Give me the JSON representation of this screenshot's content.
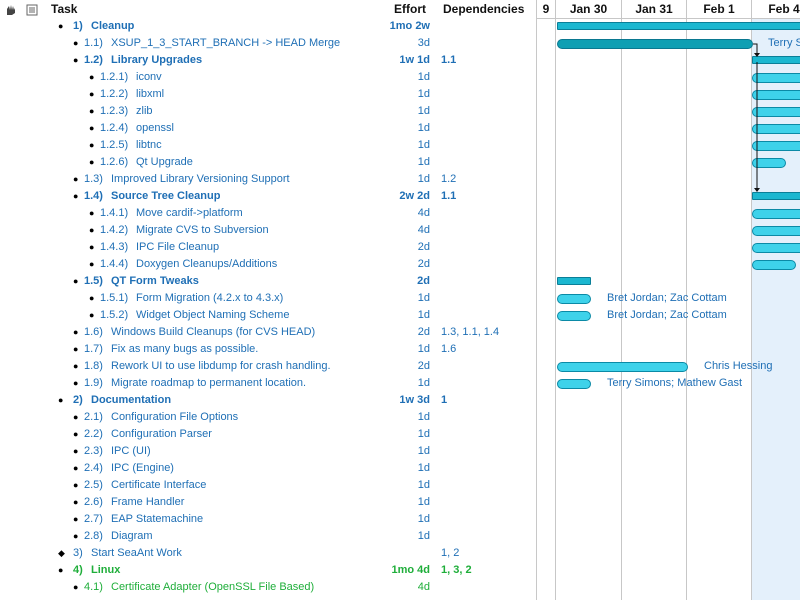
{
  "header": {
    "task": "Task",
    "effort": "Effort",
    "dependencies": "Dependencies"
  },
  "gantt": {
    "dates": [
      "9",
      "Jan 30",
      "Jan 31",
      "Feb 1",
      "Feb 4"
    ],
    "resources": {
      "r1": "Terry S",
      "r15a": "Bret Jordan; Zac Cottam",
      "r15b": "Bret Jordan; Zac Cottam",
      "r18": "Chris Hessing",
      "r19": "Terry Simons; Mathew Gast"
    }
  },
  "rows": [
    {
      "num": "1)",
      "name": "Cleanup",
      "effort": "1mo 2w",
      "deps": "",
      "level": 1,
      "bold": true,
      "color": "blue"
    },
    {
      "num": "1.1)",
      "name": "XSUP_1_3_START_BRANCH -> HEAD Merge",
      "effort": "3d",
      "deps": "",
      "level": 2,
      "bold": false,
      "color": "blue"
    },
    {
      "num": "1.2)",
      "name": "Library Upgrades",
      "effort": "1w 1d",
      "deps": "1.1",
      "level": 2,
      "bold": true,
      "color": "blue"
    },
    {
      "num": "1.2.1)",
      "name": "iconv",
      "effort": "1d",
      "deps": "",
      "level": 3,
      "bold": false,
      "color": "blue"
    },
    {
      "num": "1.2.2)",
      "name": "libxml",
      "effort": "1d",
      "deps": "",
      "level": 3,
      "bold": false,
      "color": "blue"
    },
    {
      "num": "1.2.3)",
      "name": "zlib",
      "effort": "1d",
      "deps": "",
      "level": 3,
      "bold": false,
      "color": "blue"
    },
    {
      "num": "1.2.4)",
      "name": "openssl",
      "effort": "1d",
      "deps": "",
      "level": 3,
      "bold": false,
      "color": "blue"
    },
    {
      "num": "1.2.5)",
      "name": "libtnc",
      "effort": "1d",
      "deps": "",
      "level": 3,
      "bold": false,
      "color": "blue"
    },
    {
      "num": "1.2.6)",
      "name": "Qt Upgrade",
      "effort": "1d",
      "deps": "",
      "level": 3,
      "bold": false,
      "color": "blue"
    },
    {
      "num": "1.3)",
      "name": "Improved Library Versioning Support",
      "effort": "1d",
      "deps": "1.2",
      "level": 2,
      "bold": false,
      "color": "blue"
    },
    {
      "num": "1.4)",
      "name": "Source Tree Cleanup",
      "effort": "2w 2d",
      "deps": "1.1",
      "level": 2,
      "bold": true,
      "color": "blue"
    },
    {
      "num": "1.4.1)",
      "name": "Move cardif->platform",
      "effort": "4d",
      "deps": "",
      "level": 3,
      "bold": false,
      "color": "blue"
    },
    {
      "num": "1.4.2)",
      "name": "Migrate CVS to Subversion",
      "effort": "4d",
      "deps": "",
      "level": 3,
      "bold": false,
      "color": "blue"
    },
    {
      "num": "1.4.3)",
      "name": "IPC File Cleanup",
      "effort": "2d",
      "deps": "",
      "level": 3,
      "bold": false,
      "color": "blue"
    },
    {
      "num": "1.4.4)",
      "name": "Doxygen Cleanups/Additions",
      "effort": "2d",
      "deps": "",
      "level": 3,
      "bold": false,
      "color": "blue"
    },
    {
      "num": "1.5)",
      "name": "QT Form Tweaks",
      "effort": "2d",
      "deps": "",
      "level": 2,
      "bold": true,
      "color": "blue"
    },
    {
      "num": "1.5.1)",
      "name": "Form Migration (4.2.x to 4.3.x)",
      "effort": "1d",
      "deps": "",
      "level": 3,
      "bold": false,
      "color": "blue"
    },
    {
      "num": "1.5.2)",
      "name": "Widget Object Naming Scheme",
      "effort": "1d",
      "deps": "",
      "level": 3,
      "bold": false,
      "color": "blue"
    },
    {
      "num": "1.6)",
      "name": "Windows Build Cleanups (for CVS HEAD)",
      "effort": "2d",
      "deps": "1.3, 1.1, 1.4",
      "level": 2,
      "bold": false,
      "color": "blue"
    },
    {
      "num": "1.7)",
      "name": "Fix as many bugs as possible.",
      "effort": "1d",
      "deps": "1.6",
      "level": 2,
      "bold": false,
      "color": "blue"
    },
    {
      "num": "1.8)",
      "name": "Rework UI to use libdump for crash handling.",
      "effort": "2d",
      "deps": "",
      "level": 2,
      "bold": false,
      "color": "blue"
    },
    {
      "num": "1.9)",
      "name": "Migrate roadmap to permanent location.",
      "effort": "1d",
      "deps": "",
      "level": 2,
      "bold": false,
      "color": "blue"
    },
    {
      "num": "2)",
      "name": "Documentation",
      "effort": "1w 3d",
      "deps": "1",
      "level": 1,
      "bold": true,
      "color": "blue"
    },
    {
      "num": "2.1)",
      "name": "Configuration File Options",
      "effort": "1d",
      "deps": "",
      "level": 2,
      "bold": false,
      "color": "blue"
    },
    {
      "num": "2.2)",
      "name": "Configuration Parser",
      "effort": "1d",
      "deps": "",
      "level": 2,
      "bold": false,
      "color": "blue"
    },
    {
      "num": "2.3)",
      "name": "IPC (UI)",
      "effort": "1d",
      "deps": "",
      "level": 2,
      "bold": false,
      "color": "blue"
    },
    {
      "num": "2.4)",
      "name": "IPC (Engine)",
      "effort": "1d",
      "deps": "",
      "level": 2,
      "bold": false,
      "color": "blue"
    },
    {
      "num": "2.5)",
      "name": "Certificate Interface",
      "effort": "1d",
      "deps": "",
      "level": 2,
      "bold": false,
      "color": "blue"
    },
    {
      "num": "2.6)",
      "name": "Frame Handler",
      "effort": "1d",
      "deps": "",
      "level": 2,
      "bold": false,
      "color": "blue"
    },
    {
      "num": "2.7)",
      "name": "EAP Statemachine",
      "effort": "1d",
      "deps": "",
      "level": 2,
      "bold": false,
      "color": "blue"
    },
    {
      "num": "2.8)",
      "name": "Diagram",
      "effort": "1d",
      "deps": "",
      "level": 2,
      "bold": false,
      "color": "blue"
    },
    {
      "num": "3)",
      "name": "Start SeaAnt Work",
      "effort": "",
      "deps": "1, 2",
      "level": 1,
      "bold": false,
      "color": "blue",
      "milestone": true
    },
    {
      "num": "4)",
      "name": "Linux",
      "effort": "1mo 4d",
      "deps": "1, 3, 2",
      "level": 1,
      "bold": true,
      "color": "green"
    },
    {
      "num": "4.1)",
      "name": "Certificate Adapter (OpenSSL File Based)",
      "effort": "4d",
      "deps": "",
      "level": 2,
      "bold": false,
      "color": "green"
    }
  ]
}
